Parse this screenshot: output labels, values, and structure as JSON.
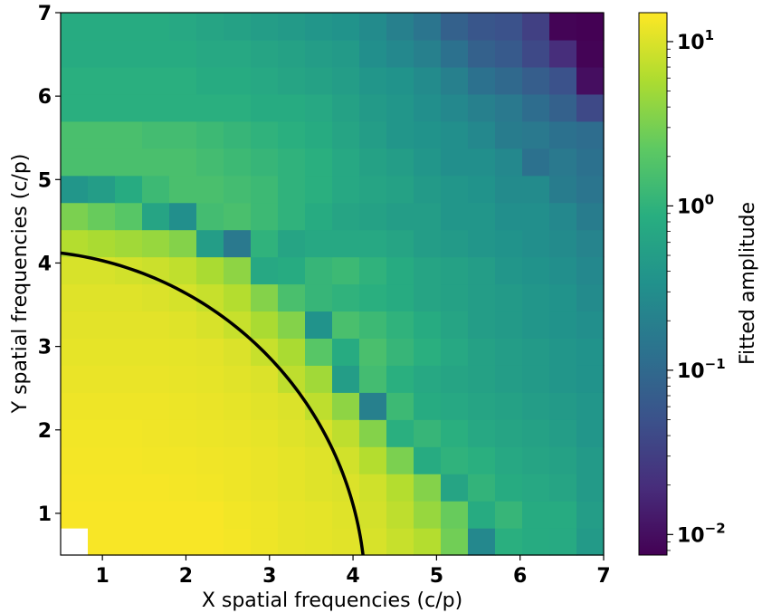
{
  "chart_data": {
    "type": "heatmap",
    "title": "",
    "xlabel": "X spatial frequencies (c/p)",
    "ylabel": "Y spatial frequencies (c/p)",
    "colorbar_label": "Fitted amplitude",
    "colormap": "viridis",
    "color_scale": "log",
    "color_range": [
      0.0075,
      15
    ],
    "xlim": [
      0.5,
      7
    ],
    "ylim": [
      0.5,
      7
    ],
    "x_ticks": [
      {
        "value": 1,
        "label": "1"
      },
      {
        "value": 2,
        "label": "2"
      },
      {
        "value": 3,
        "label": "3"
      },
      {
        "value": 4,
        "label": "4"
      },
      {
        "value": 5,
        "label": "5"
      },
      {
        "value": 6,
        "label": "6"
      },
      {
        "value": 7,
        "label": "7"
      }
    ],
    "y_ticks": [
      {
        "value": 1,
        "label": "1"
      },
      {
        "value": 2,
        "label": "2"
      },
      {
        "value": 3,
        "label": "3"
      },
      {
        "value": 4,
        "label": "4"
      },
      {
        "value": 5,
        "label": "5"
      },
      {
        "value": 6,
        "label": "6"
      },
      {
        "value": 7,
        "label": "7"
      }
    ],
    "colorbar_ticks": [
      {
        "value": 10,
        "base": "10",
        "exponent": "1"
      },
      {
        "value": 1,
        "base": "10",
        "exponent": "0"
      },
      {
        "value": 0.1,
        "base": "10",
        "exponent": "−1"
      },
      {
        "value": 0.01,
        "base": "10",
        "exponent": "−2"
      }
    ],
    "grid": false,
    "cell_size": 0.325,
    "grid_x_centers_start": 0.6625,
    "grid_y_centers_start": 0.6625,
    "grid_shape": [
      20,
      20
    ],
    "missing_cells": [
      [
        0,
        0
      ]
    ],
    "circle_overlay": {
      "center": [
        0,
        0
      ],
      "radius": 4.15,
      "color": "#000000"
    },
    "values_log10": [
      [
        null,
        1.15,
        1.15,
        1.15,
        1.15,
        1.15,
        1.13,
        1.1,
        1.07,
        1.05,
        1.03,
        0.98,
        0.9,
        0.8,
        0.45,
        -0.6,
        -0.05,
        -0.1,
        -0.12,
        -0.35
      ],
      [
        1.15,
        1.15,
        1.15,
        1.15,
        1.15,
        1.15,
        1.12,
        1.1,
        1.07,
        1.05,
        1.02,
        0.96,
        0.85,
        0.65,
        0.4,
        -0.1,
        0.05,
        -0.1,
        -0.1,
        -0.3
      ],
      [
        1.14,
        1.14,
        1.14,
        1.14,
        1.13,
        1.12,
        1.1,
        1.08,
        1.05,
        1.02,
        1.0,
        0.94,
        0.8,
        0.55,
        -0.2,
        0.02,
        -0.1,
        -0.15,
        -0.2,
        -0.35
      ],
      [
        1.13,
        1.13,
        1.13,
        1.12,
        1.12,
        1.11,
        1.1,
        1.08,
        1.05,
        1.02,
        0.95,
        0.8,
        0.5,
        -0.1,
        0.0,
        -0.05,
        -0.15,
        -0.2,
        -0.25,
        -0.35
      ],
      [
        1.12,
        1.12,
        1.12,
        1.11,
        1.1,
        1.09,
        1.08,
        1.06,
        1.02,
        0.98,
        0.85,
        0.55,
        -0.05,
        0.05,
        -0.05,
        -0.15,
        -0.2,
        -0.25,
        -0.3,
        -0.4
      ],
      [
        1.1,
        1.1,
        1.1,
        1.1,
        1.09,
        1.08,
        1.06,
        1.03,
        1.0,
        0.85,
        0.6,
        -0.7,
        0.1,
        -0.1,
        -0.15,
        -0.2,
        -0.25,
        -0.3,
        -0.35,
        -0.4
      ],
      [
        1.08,
        1.08,
        1.08,
        1.08,
        1.07,
        1.06,
        1.03,
        1.0,
        0.85,
        0.7,
        -0.3,
        0.15,
        -0.05,
        -0.15,
        -0.2,
        -0.25,
        -0.3,
        -0.35,
        -0.4,
        -0.45
      ],
      [
        1.06,
        1.06,
        1.06,
        1.06,
        1.05,
        1.04,
        1.0,
        0.9,
        0.75,
        0.3,
        -0.1,
        0.2,
        0.05,
        -0.05,
        -0.15,
        -0.25,
        -0.3,
        -0.35,
        -0.4,
        -0.45
      ],
      [
        1.04,
        1.04,
        1.04,
        1.04,
        1.02,
        0.98,
        0.9,
        0.75,
        0.55,
        -0.45,
        0.2,
        0.1,
        0.0,
        -0.1,
        -0.2,
        -0.3,
        -0.35,
        -0.4,
        -0.45,
        -0.5
      ],
      [
        1.02,
        1.02,
        1.02,
        1.0,
        0.97,
        0.9,
        0.8,
        0.55,
        0.2,
        0.05,
        0.0,
        -0.05,
        -0.1,
        -0.2,
        -0.25,
        -0.3,
        -0.35,
        -0.4,
        -0.45,
        -0.55
      ],
      [
        0.98,
        0.98,
        0.95,
        0.92,
        0.86,
        0.75,
        0.6,
        -0.15,
        -0.1,
        0.05,
        0.1,
        0.0,
        -0.1,
        -0.2,
        -0.25,
        -0.3,
        -0.4,
        -0.45,
        -0.5,
        -0.6
      ],
      [
        0.8,
        0.75,
        0.7,
        0.65,
        0.55,
        -0.3,
        -0.8,
        0.0,
        -0.2,
        -0.15,
        -0.15,
        -0.15,
        -0.2,
        -0.3,
        -0.35,
        -0.4,
        -0.45,
        -0.5,
        -0.55,
        -0.65
      ],
      [
        0.5,
        0.4,
        0.3,
        -0.2,
        -0.5,
        0.15,
        0.2,
        0.1,
        0.0,
        -0.1,
        -0.2,
        -0.25,
        -0.3,
        -0.3,
        -0.4,
        -0.4,
        -0.5,
        -0.5,
        -0.6,
        -0.75
      ],
      [
        -0.4,
        -0.3,
        -0.1,
        0.1,
        0.2,
        0.2,
        0.15,
        0.1,
        0.0,
        -0.05,
        -0.15,
        -0.2,
        -0.25,
        -0.35,
        -0.4,
        -0.45,
        -0.55,
        -0.55,
        -0.75,
        -0.85
      ],
      [
        0.2,
        0.2,
        0.2,
        0.2,
        0.2,
        0.15,
        0.1,
        0.05,
        0.0,
        -0.05,
        -0.15,
        -0.25,
        -0.3,
        -0.4,
        -0.5,
        -0.5,
        -0.6,
        -0.9,
        -0.8,
        -0.9
      ],
      [
        0.2,
        0.2,
        0.2,
        0.15,
        0.15,
        0.1,
        0.05,
        0.0,
        -0.05,
        -0.1,
        -0.2,
        -0.3,
        -0.4,
        -0.45,
        -0.5,
        -0.6,
        -0.75,
        -0.8,
        -0.9,
        -0.95
      ],
      [
        -0.05,
        -0.05,
        -0.05,
        -0.05,
        -0.05,
        -0.05,
        -0.05,
        -0.1,
        -0.1,
        -0.15,
        -0.25,
        -0.35,
        -0.4,
        -0.5,
        -0.6,
        -0.7,
        -0.8,
        -0.95,
        -1.1,
        -1.4
      ],
      [
        -0.05,
        -0.05,
        -0.05,
        -0.05,
        -0.05,
        -0.1,
        -0.1,
        -0.15,
        -0.2,
        -0.25,
        -0.3,
        -0.4,
        -0.45,
        -0.55,
        -0.7,
        -0.9,
        -1.0,
        -1.15,
        -1.3,
        -2.0
      ],
      [
        -0.1,
        -0.1,
        -0.1,
        -0.1,
        -0.1,
        -0.15,
        -0.15,
        -0.2,
        -0.25,
        -0.3,
        -0.35,
        -0.5,
        -0.6,
        -0.7,
        -0.9,
        -1.1,
        -1.2,
        -1.4,
        -1.7,
        -2.1
      ],
      [
        -0.1,
        -0.1,
        -0.1,
        -0.1,
        -0.15,
        -0.2,
        -0.25,
        -0.3,
        -0.35,
        -0.4,
        -0.45,
        -0.55,
        -0.7,
        -0.85,
        -1.1,
        -1.25,
        -1.3,
        -1.5,
        -2.1,
        -2.15
      ]
    ]
  }
}
